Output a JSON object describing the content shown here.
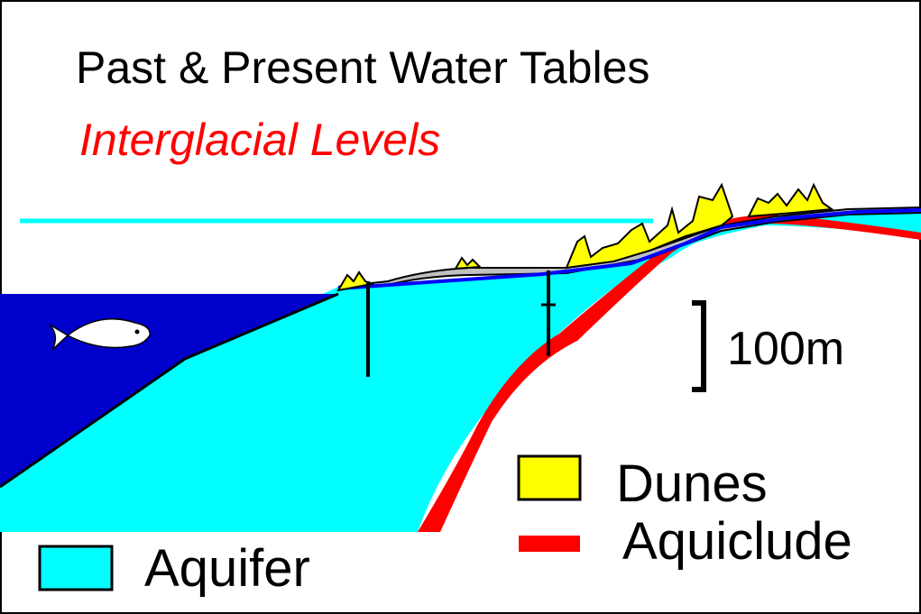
{
  "title": "Past & Present Water Tables",
  "subtitle": "Interglacial Levels",
  "scale_bar": {
    "label": "100m"
  },
  "legend": {
    "aquifer": "Aquifer",
    "dunes": "Dunes",
    "aquiclude": "Aquiclude"
  },
  "colors": {
    "sea": "#0000cc",
    "aquifer": "#00ffff",
    "interglacial_level": "#00ffff",
    "dunes": "#ffff00",
    "aquiclude": "#ff0000",
    "water_table": "#0000ff",
    "ground": "#c0c0c0",
    "outline": "#000000",
    "subtitle": "#ff0000"
  },
  "icons": {
    "fish": "fish-icon"
  }
}
